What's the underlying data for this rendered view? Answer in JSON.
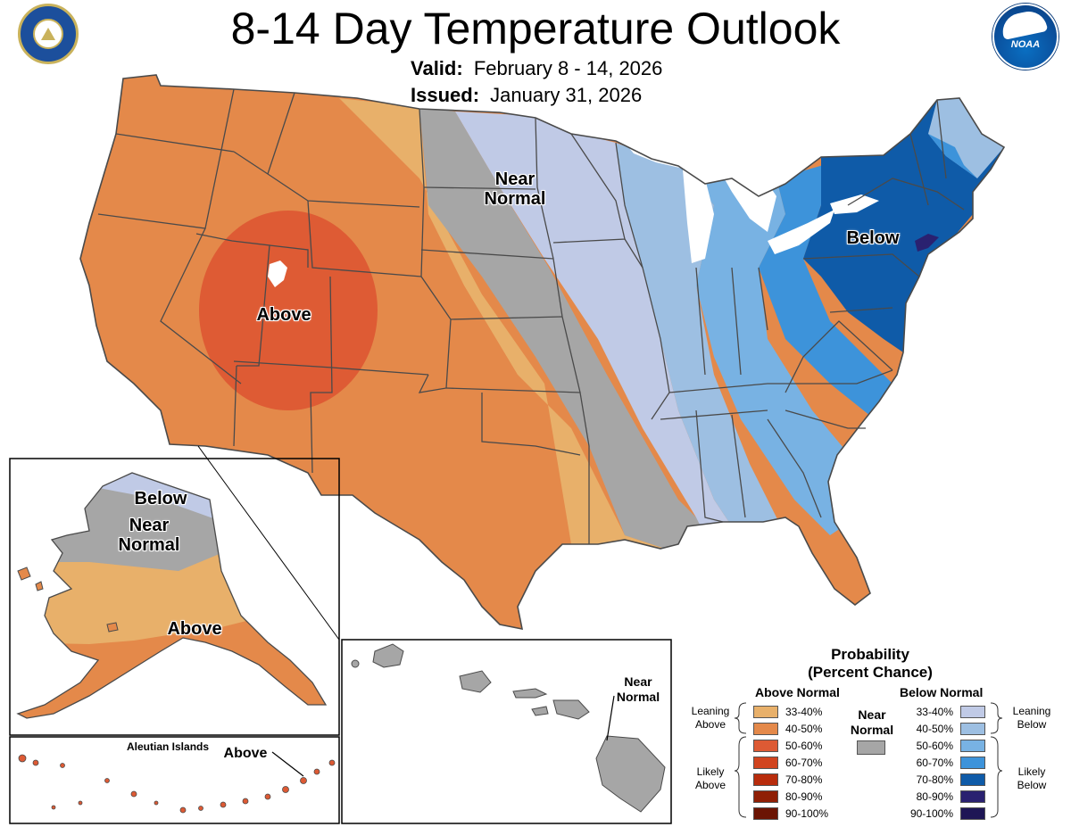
{
  "header": {
    "title": "8-14 Day Temperature Outlook",
    "valid_label": "Valid:",
    "valid_value": "February 8 - 14, 2026",
    "issued_label": "Issued:",
    "issued_value": "January 31, 2026"
  },
  "logos": {
    "left": "commerce-seal-icon",
    "right": "noaa-logo-icon",
    "noaa_text": "NOAA"
  },
  "map_labels": {
    "conus_near": [
      "Near",
      "Normal"
    ],
    "conus_above": "Above",
    "conus_below": "Below",
    "ak_below": "Below",
    "ak_near": [
      "Near",
      "Normal"
    ],
    "ak_above": "Above",
    "aleutian_title": "Aleutian Islands",
    "aleutian_above": "Above",
    "hi_near": [
      "Near",
      "Normal"
    ]
  },
  "legend": {
    "title": [
      "Probability",
      "(Percent Chance)"
    ],
    "above_header": "Above Normal",
    "below_header": "Below Normal",
    "near_header": [
      "Near",
      "Normal"
    ],
    "leaning_above": [
      "Leaning",
      "Above"
    ],
    "likely_above": [
      "Likely",
      "Above"
    ],
    "leaning_below": [
      "Leaning",
      "Below"
    ],
    "likely_below": [
      "Likely",
      "Below"
    ],
    "near_color": "#a6a6a6",
    "above": [
      {
        "label": "33-40%",
        "color": "#e8b06a"
      },
      {
        "label": "40-50%",
        "color": "#e4894a"
      },
      {
        "label": "50-60%",
        "color": "#dd5a34"
      },
      {
        "label": "60-70%",
        "color": "#d1441f"
      },
      {
        "label": "70-80%",
        "color": "#b82c0c"
      },
      {
        "label": "80-90%",
        "color": "#8f1f05"
      },
      {
        "label": "90-100%",
        "color": "#6b1403"
      }
    ],
    "below": [
      {
        "label": "33-40%",
        "color": "#c0cae6"
      },
      {
        "label": "40-50%",
        "color": "#9dbfe2"
      },
      {
        "label": "50-60%",
        "color": "#78b2e3"
      },
      {
        "label": "60-70%",
        "color": "#3d93da"
      },
      {
        "label": "70-80%",
        "color": "#0f5ba8"
      },
      {
        "label": "80-90%",
        "color": "#2a2170"
      },
      {
        "label": "90-100%",
        "color": "#1e1655"
      }
    ]
  }
}
